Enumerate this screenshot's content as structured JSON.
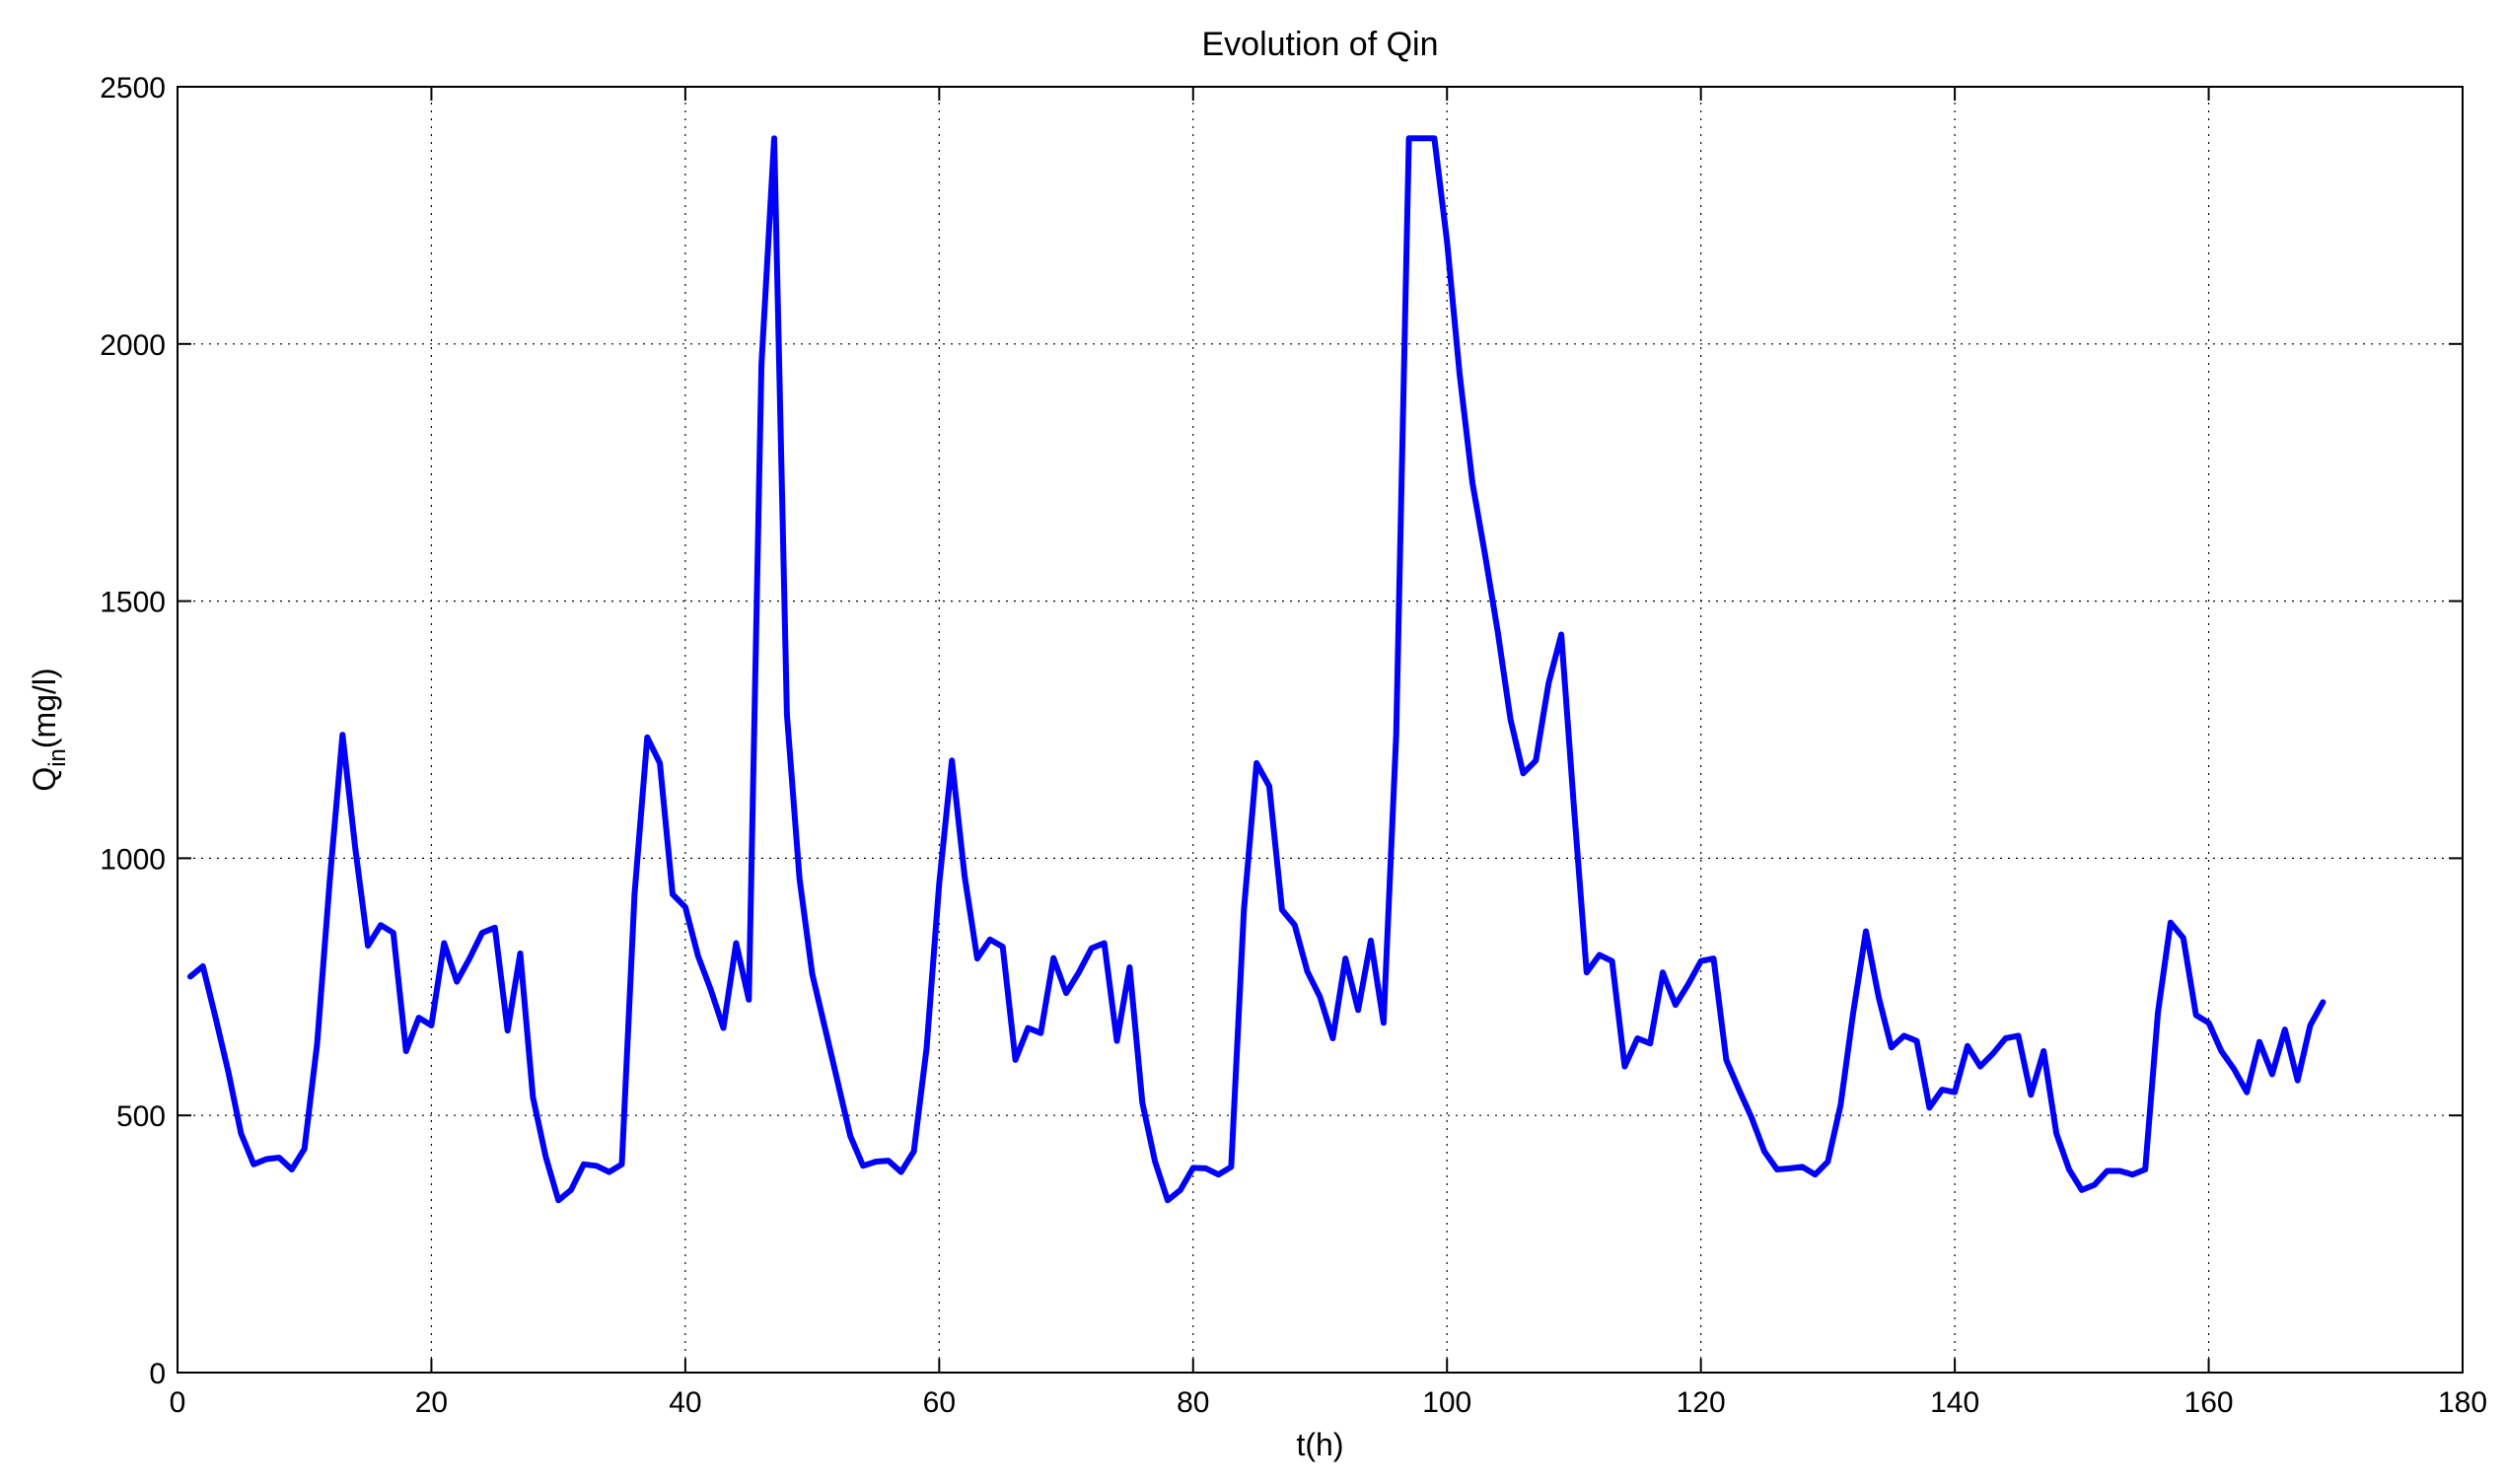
{
  "chart_data": {
    "type": "line",
    "title": "Evolution of Qin",
    "xlabel": "t(h)",
    "ylabel": {
      "main": "Q",
      "sub": "in",
      "suffix": "(mg/l)"
    },
    "xlim": [
      0,
      180
    ],
    "ylim": [
      0,
      2500
    ],
    "xticks": [
      0,
      20,
      40,
      60,
      80,
      100,
      120,
      140,
      160,
      180
    ],
    "yticks": [
      0,
      500,
      1000,
      1500,
      2000,
      2500
    ],
    "grid": true,
    "line_color": "#0000ff",
    "series": [
      {
        "x": [
          1,
          2,
          3,
          4,
          5,
          6,
          7,
          8,
          9,
          10,
          11,
          12,
          13,
          14,
          15,
          16,
          17,
          18,
          19,
          20,
          21,
          22,
          23,
          24,
          25,
          26,
          27,
          28,
          29,
          30,
          31,
          32,
          33,
          34,
          35,
          36,
          37,
          38,
          39,
          40,
          41,
          42,
          43,
          44,
          45,
          46,
          47,
          48,
          49,
          50,
          51,
          52,
          53,
          54,
          55,
          56,
          57,
          58,
          59,
          60,
          61,
          62,
          63,
          64,
          65,
          66,
          67,
          68,
          69,
          70,
          71,
          72,
          73,
          74,
          75,
          76,
          77,
          78,
          79,
          80,
          81,
          82,
          83,
          84,
          85,
          86,
          87,
          88,
          89,
          90,
          91,
          92,
          93,
          94,
          95,
          96,
          97,
          98,
          99,
          100,
          101,
          102,
          103,
          104,
          105,
          106,
          107,
          108,
          109,
          110,
          111,
          112,
          113,
          114,
          115,
          116,
          117,
          118,
          119,
          120,
          121,
          122,
          123,
          124,
          125,
          126,
          127,
          128,
          129,
          130,
          131,
          132,
          133,
          134,
          135,
          136,
          137,
          138,
          139,
          140,
          141,
          142,
          143,
          144,
          145,
          146,
          147,
          148,
          149,
          150,
          151,
          152,
          153,
          154,
          155,
          156,
          157,
          158,
          159,
          160,
          161,
          162,
          163,
          164,
          165,
          166,
          167,
          168,
          169
        ],
        "y": [
          770,
          790,
          690,
          585,
          465,
          405,
          415,
          418,
          395,
          435,
          640,
          960,
          1240,
          1020,
          830,
          870,
          855,
          625,
          690,
          675,
          835,
          760,
          805,
          855,
          865,
          665,
          815,
          535,
          420,
          335,
          355,
          405,
          402,
          390,
          405,
          930,
          1235,
          1185,
          930,
          905,
          810,
          745,
          670,
          835,
          725,
          1960,
          2400,
          1280,
          960,
          775,
          670,
          565,
          460,
          402,
          410,
          412,
          390,
          430,
          630,
          950,
          1190,
          965,
          805,
          842,
          828,
          608,
          670,
          660,
          806,
          738,
          778,
          825,
          835,
          645,
          788,
          525,
          410,
          335,
          355,
          398,
          397,
          385,
          400,
          900,
          1185,
          1140,
          900,
          870,
          780,
          730,
          650,
          805,
          705,
          840,
          680,
          1240,
          2400,
          2400,
          2400,
          2200,
          1940,
          1730,
          1590,
          1440,
          1270,
          1165,
          1190,
          1340,
          1435,
          1100,
          778,
          812,
          800,
          595,
          650,
          640,
          778,
          715,
          755,
          800,
          805,
          608,
          550,
          495,
          430,
          395,
          397,
          400,
          385,
          410,
          520,
          700,
          858,
          730,
          632,
          655,
          645,
          515,
          550,
          545,
          635,
          595,
          620,
          650,
          655,
          540,
          625,
          465,
          395,
          355,
          365,
          392,
          392,
          385,
          395,
          700,
          875,
          845,
          695,
          680,
          625,
          590,
          545,
          643,
          580,
          667,
          568,
          675,
          720
        ]
      }
    ]
  }
}
